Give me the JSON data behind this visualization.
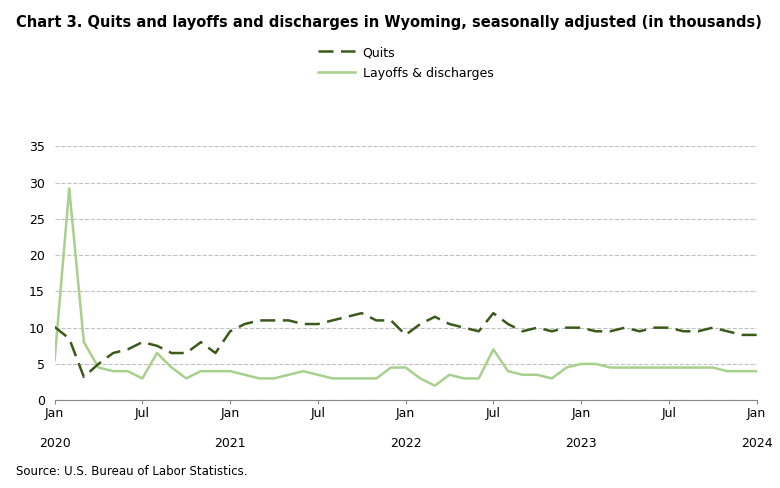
{
  "title": "Chart 3. Quits and layoffs and discharges in Wyoming, seasonally adjusted (in thousands)",
  "source": "Source: U.S. Bureau of Labor Statistics.",
  "quits_label": "Quits",
  "layoffs_label": "Layoffs & discharges",
  "quits_color": "#3a5a1a",
  "layoffs_color": "#a8d08d",
  "background_color": "#ffffff",
  "ylim": [
    0,
    35
  ],
  "yticks": [
    0,
    5,
    10,
    15,
    20,
    25,
    30,
    35
  ],
  "x_tick_positions": [
    0,
    6,
    12,
    18,
    24,
    30,
    36,
    42,
    48
  ],
  "x_tick_labels_top": [
    "Jan",
    "Jul",
    "Jan",
    "Jul",
    "Jan",
    "Jul",
    "Jan",
    "Jul",
    "Jan"
  ],
  "x_tick_labels_year": [
    "2020",
    "",
    "2021",
    "",
    "2022",
    "",
    "2023",
    "",
    "2024"
  ],
  "quits": [
    10.1,
    8.5,
    3.2,
    5.0,
    6.5,
    7.0,
    8.0,
    7.5,
    6.5,
    6.5,
    8.0,
    6.5,
    9.5,
    10.5,
    11.0,
    11.0,
    11.0,
    10.5,
    10.5,
    11.0,
    11.5,
    12.0,
    11.0,
    11.0,
    9.0,
    10.5,
    11.5,
    10.5,
    10.0,
    9.5,
    12.0,
    10.5,
    9.5,
    10.0,
    9.5,
    10.0,
    10.0,
    9.5,
    9.5,
    10.0,
    9.5,
    10.0,
    10.0,
    9.5,
    9.5,
    10.0,
    9.5,
    9.0,
    9.0
  ],
  "layoffs": [
    5.5,
    29.2,
    8.0,
    4.5,
    4.0,
    4.0,
    3.0,
    6.5,
    4.5,
    3.0,
    4.0,
    4.0,
    4.0,
    3.5,
    3.0,
    3.0,
    3.5,
    4.0,
    3.5,
    3.0,
    3.0,
    3.0,
    3.0,
    4.5,
    4.5,
    3.0,
    2.0,
    3.5,
    3.0,
    3.0,
    7.0,
    4.0,
    3.5,
    3.5,
    3.0,
    4.5,
    5.0,
    5.0,
    4.5,
    4.5,
    4.5,
    4.5,
    4.5,
    4.5,
    4.5,
    4.5,
    4.0,
    4.0,
    4.0
  ]
}
